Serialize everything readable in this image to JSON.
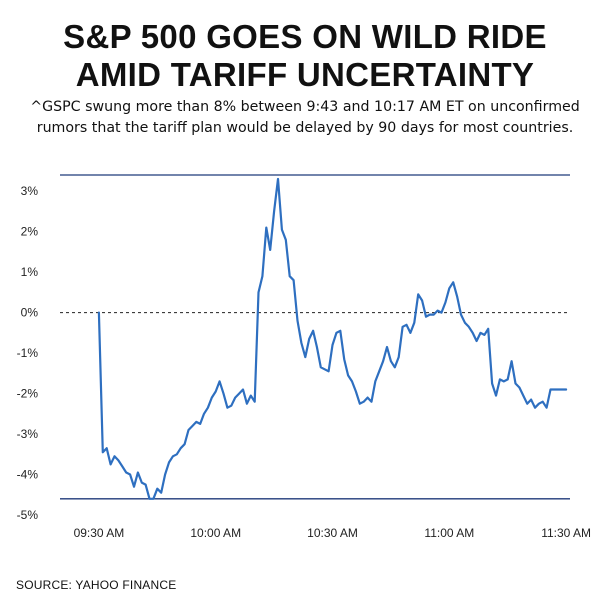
{
  "title_line1": "S&P 500 GOES ON WILD RIDE",
  "title_line2": "AMID TARIFF UNCERTAINTY",
  "subtitle_line1": "^GSPC swung more than 8% between 9:43 and 10:17 AM ET on unconfirmed",
  "subtitle_line2": "rumors that the tariff plan would be delayed by 90 days for most countries.",
  "source": "SOURCE: YAHOO FINANCE",
  "colors": {
    "line": "#2e6fc0",
    "rule": "#1f3a7a",
    "zero": "#222222"
  },
  "chart_data": {
    "type": "line",
    "title": "S&P 500 GOES ON WILD RIDE AMID TARIFF UNCERTAINTY",
    "xlabel": "",
    "ylabel": "",
    "xlim": [
      "09:20",
      "11:31"
    ],
    "ylim": [
      -5,
      3.4
    ],
    "xticks": [
      {
        "t": "09:30",
        "label": "09:30 AM"
      },
      {
        "t": "10:00",
        "label": "10:00 AM"
      },
      {
        "t": "10:30",
        "label": "10:30 AM"
      },
      {
        "t": "11:00",
        "label": "11:00 AM"
      },
      {
        "t": "11:30",
        "label": "11:30 AM"
      }
    ],
    "yticks": [
      {
        "v": 3,
        "label": "3%"
      },
      {
        "v": 2,
        "label": "2%"
      },
      {
        "v": 1,
        "label": "1%"
      },
      {
        "v": 0,
        "label": "0%"
      },
      {
        "v": -1,
        "label": "-1%"
      },
      {
        "v": -2,
        "label": "-2%"
      },
      {
        "v": -3,
        "label": "-3%"
      },
      {
        "v": -4,
        "label": "-4%"
      },
      {
        "v": -5,
        "label": "-5%"
      }
    ],
    "reference_lines": {
      "high": 3.4,
      "low": -4.6,
      "baseline": 0
    },
    "series": [
      {
        "x": [
          "09:30",
          "09:31",
          "09:32",
          "09:33",
          "09:34",
          "09:35",
          "09:36",
          "09:37",
          "09:38",
          "09:39",
          "09:40",
          "09:41",
          "09:42",
          "09:43",
          "09:44",
          "09:45",
          "09:46",
          "09:47",
          "09:48",
          "09:49",
          "09:50",
          "09:51",
          "09:52",
          "09:53",
          "09:54",
          "09:55",
          "09:56",
          "09:57",
          "09:58",
          "09:59",
          "10:00",
          "10:01",
          "10:02",
          "10:03",
          "10:04",
          "10:05",
          "10:06",
          "10:07",
          "10:08",
          "10:09",
          "10:10",
          "10:11",
          "10:12",
          "10:13",
          "10:14",
          "10:15",
          "10:16",
          "10:17",
          "10:18",
          "10:19",
          "10:20",
          "10:21",
          "10:22",
          "10:23",
          "10:24",
          "10:25",
          "10:26",
          "10:27",
          "10:28",
          "10:29",
          "10:30",
          "10:31",
          "10:32",
          "10:33",
          "10:34",
          "10:35",
          "10:36",
          "10:37",
          "10:38",
          "10:39",
          "10:40",
          "10:41",
          "10:42",
          "10:43",
          "10:44",
          "10:45",
          "10:46",
          "10:47",
          "10:48",
          "10:49",
          "10:50",
          "10:51",
          "10:52",
          "10:53",
          "10:54",
          "10:55",
          "10:56",
          "10:57",
          "10:58",
          "10:59",
          "11:00",
          "11:01",
          "11:02",
          "11:03",
          "11:04",
          "11:05",
          "11:06",
          "11:07",
          "11:08",
          "11:09",
          "11:10",
          "11:11",
          "11:12",
          "11:13",
          "11:14",
          "11:15",
          "11:16",
          "11:17",
          "11:18",
          "11:19",
          "11:20",
          "11:21",
          "11:22",
          "11:23",
          "11:24",
          "11:25",
          "11:26",
          "11:27",
          "11:28",
          "11:29",
          "11:30"
        ],
        "values": [
          0.0,
          -3.45,
          -3.35,
          -3.75,
          -3.55,
          -3.65,
          -3.8,
          -3.95,
          -4.0,
          -4.3,
          -3.95,
          -4.2,
          -4.25,
          -4.6,
          -4.6,
          -4.35,
          -4.45,
          -4.0,
          -3.7,
          -3.55,
          -3.5,
          -3.35,
          -3.25,
          -2.9,
          -2.8,
          -2.7,
          -2.75,
          -2.5,
          -2.35,
          -2.1,
          -1.95,
          -1.7,
          -2.0,
          -2.35,
          -2.3,
          -2.1,
          -2.0,
          -1.9,
          -2.25,
          -2.05,
          -2.2,
          0.5,
          0.9,
          2.1,
          1.55,
          2.5,
          3.3,
          2.05,
          1.8,
          0.9,
          0.8,
          -0.2,
          -0.75,
          -1.1,
          -0.65,
          -0.45,
          -0.85,
          -1.35,
          -1.4,
          -1.45,
          -0.8,
          -0.5,
          -0.45,
          -1.15,
          -1.55,
          -1.7,
          -1.95,
          -2.25,
          -2.2,
          -2.1,
          -2.2,
          -1.7,
          -1.45,
          -1.2,
          -0.85,
          -1.2,
          -1.35,
          -1.1,
          -0.35,
          -0.3,
          -0.5,
          -0.25,
          0.45,
          0.3,
          -0.1,
          -0.05,
          -0.05,
          0.05,
          0.0,
          0.25,
          0.6,
          0.75,
          0.4,
          -0.05,
          -0.25,
          -0.35,
          -0.5,
          -0.7,
          -0.5,
          -0.55,
          -0.4,
          -1.75,
          -2.05,
          -1.65,
          -1.7,
          -1.65,
          -1.2,
          -1.75,
          -1.85,
          -2.05,
          -2.25,
          -2.15,
          -2.35,
          -2.25,
          -2.2,
          -2.35,
          -1.9,
          -1.9,
          -1.9,
          -1.9,
          -1.9
        ]
      }
    ],
    "grid": false,
    "legend": "none"
  }
}
